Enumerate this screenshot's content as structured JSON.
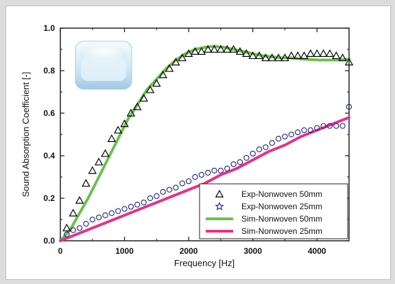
{
  "chart_data": {
    "type": "line",
    "title": "",
    "xlabel": "Frequency [Hz]",
    "ylabel": "Sound Absorption Coefficient [-]",
    "xlim": [
      0,
      4500
    ],
    "ylim": [
      0,
      1.0
    ],
    "xticks": [
      0,
      1000,
      2000,
      3000,
      4000
    ],
    "yticks": [
      0.0,
      0.2,
      0.4,
      0.6,
      0.8,
      1.0
    ],
    "xtick_labels": [
      "0",
      "1000",
      "2000",
      "3000",
      "4000"
    ],
    "ytick_labels": [
      "0.0",
      "0.2",
      "0.4",
      "0.6",
      "0.8",
      "1.0"
    ],
    "grid": false,
    "legend_position": "bottom-right",
    "series": [
      {
        "name": "Exp-Nonwoven 50mm",
        "kind": "scatter",
        "marker": "triangle-open",
        "color": "#000000",
        "x": [
          100,
          200,
          300,
          400,
          500,
          600,
          700,
          800,
          900,
          1000,
          1100,
          1200,
          1300,
          1400,
          1500,
          1600,
          1700,
          1800,
          1900,
          2000,
          2100,
          2200,
          2300,
          2400,
          2500,
          2600,
          2700,
          2800,
          2900,
          3000,
          3100,
          3200,
          3300,
          3400,
          3500,
          3600,
          3700,
          3800,
          3900,
          4000,
          4100,
          4200,
          4300,
          4400,
          4500
        ],
        "y": [
          0.06,
          0.13,
          0.19,
          0.27,
          0.33,
          0.37,
          0.41,
          0.48,
          0.52,
          0.55,
          0.6,
          0.63,
          0.67,
          0.71,
          0.74,
          0.78,
          0.81,
          0.84,
          0.86,
          0.88,
          0.89,
          0.89,
          0.9,
          0.9,
          0.9,
          0.9,
          0.9,
          0.89,
          0.88,
          0.87,
          0.87,
          0.86,
          0.86,
          0.86,
          0.86,
          0.87,
          0.87,
          0.87,
          0.88,
          0.88,
          0.88,
          0.88,
          0.87,
          0.86,
          0.84
        ]
      },
      {
        "name": "Exp-Nonwoven 25mm",
        "kind": "scatter",
        "marker": "circle-open",
        "color": "#1a237e",
        "x": [
          100,
          200,
          300,
          400,
          500,
          600,
          700,
          800,
          900,
          1000,
          1100,
          1200,
          1300,
          1400,
          1500,
          1600,
          1700,
          1800,
          1900,
          2000,
          2100,
          2200,
          2300,
          2400,
          2500,
          2600,
          2700,
          2800,
          2900,
          3000,
          3100,
          3200,
          3300,
          3400,
          3500,
          3600,
          3700,
          3800,
          3900,
          4000,
          4100,
          4200,
          4300,
          4400,
          4500
        ],
        "y": [
          0.03,
          0.05,
          0.06,
          0.08,
          0.1,
          0.11,
          0.12,
          0.13,
          0.14,
          0.15,
          0.16,
          0.17,
          0.18,
          0.2,
          0.21,
          0.23,
          0.24,
          0.25,
          0.27,
          0.28,
          0.3,
          0.31,
          0.32,
          0.33,
          0.33,
          0.34,
          0.36,
          0.37,
          0.39,
          0.41,
          0.43,
          0.44,
          0.46,
          0.48,
          0.49,
          0.5,
          0.51,
          0.52,
          0.52,
          0.53,
          0.54,
          0.54,
          0.54,
          0.54,
          0.63
        ]
      },
      {
        "name": "Sim-Nonwoven 50mm",
        "kind": "line",
        "color": "#6cc04a",
        "x": [
          0,
          150,
          300,
          450,
          600,
          750,
          900,
          1050,
          1200,
          1350,
          1500,
          1650,
          1800,
          1950,
          2100,
          2250,
          2400,
          2550,
          2700,
          2850,
          3000,
          3150,
          3300,
          3450,
          3600,
          3750,
          3900,
          4050,
          4200,
          4350,
          4500
        ],
        "y": [
          0.0,
          0.05,
          0.13,
          0.21,
          0.3,
          0.39,
          0.48,
          0.57,
          0.64,
          0.71,
          0.76,
          0.81,
          0.85,
          0.88,
          0.9,
          0.91,
          0.915,
          0.91,
          0.9,
          0.89,
          0.88,
          0.87,
          0.865,
          0.86,
          0.86,
          0.855,
          0.852,
          0.85,
          0.85,
          0.85,
          0.855
        ]
      },
      {
        "name": "Sim-Nonwoven 25mm",
        "kind": "line",
        "color": "#e8308a",
        "x": [
          0,
          250,
          500,
          750,
          1000,
          1250,
          1500,
          1750,
          2000,
          2250,
          2500,
          2750,
          3000,
          3250,
          3500,
          3750,
          4000,
          4250,
          4500
        ],
        "y": [
          0.0,
          0.03,
          0.06,
          0.09,
          0.12,
          0.15,
          0.18,
          0.21,
          0.24,
          0.27,
          0.31,
          0.34,
          0.38,
          0.42,
          0.45,
          0.49,
          0.52,
          0.55,
          0.58
        ]
      }
    ]
  }
}
